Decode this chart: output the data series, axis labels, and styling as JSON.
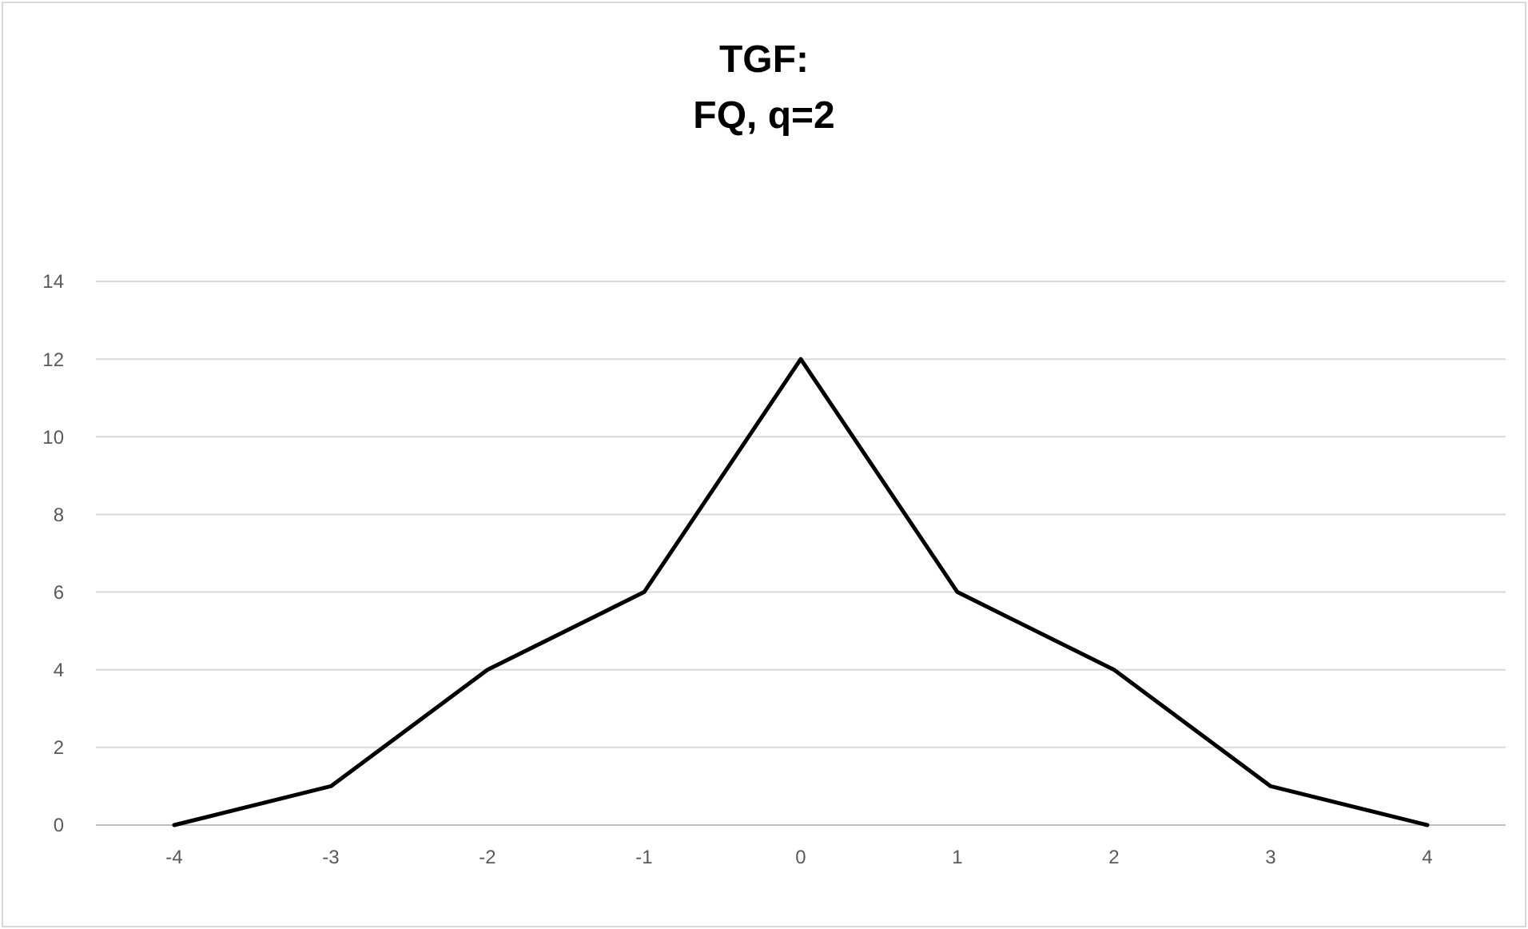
{
  "chart_data": {
    "type": "line",
    "title": "TGF:\nFQ, q=2",
    "categories": [
      "-4",
      "-3",
      "-2",
      "-1",
      "0",
      "1",
      "2",
      "3",
      "4"
    ],
    "series": [
      {
        "color": "#000000",
        "values": [
          0,
          1,
          4,
          6,
          12,
          6,
          4,
          1,
          0
        ]
      }
    ],
    "ylim": [
      0,
      14
    ],
    "yticks": [
      0,
      2,
      4,
      6,
      8,
      10,
      12,
      14
    ],
    "grid": "y",
    "marker": "none",
    "line_style": "solid"
  }
}
